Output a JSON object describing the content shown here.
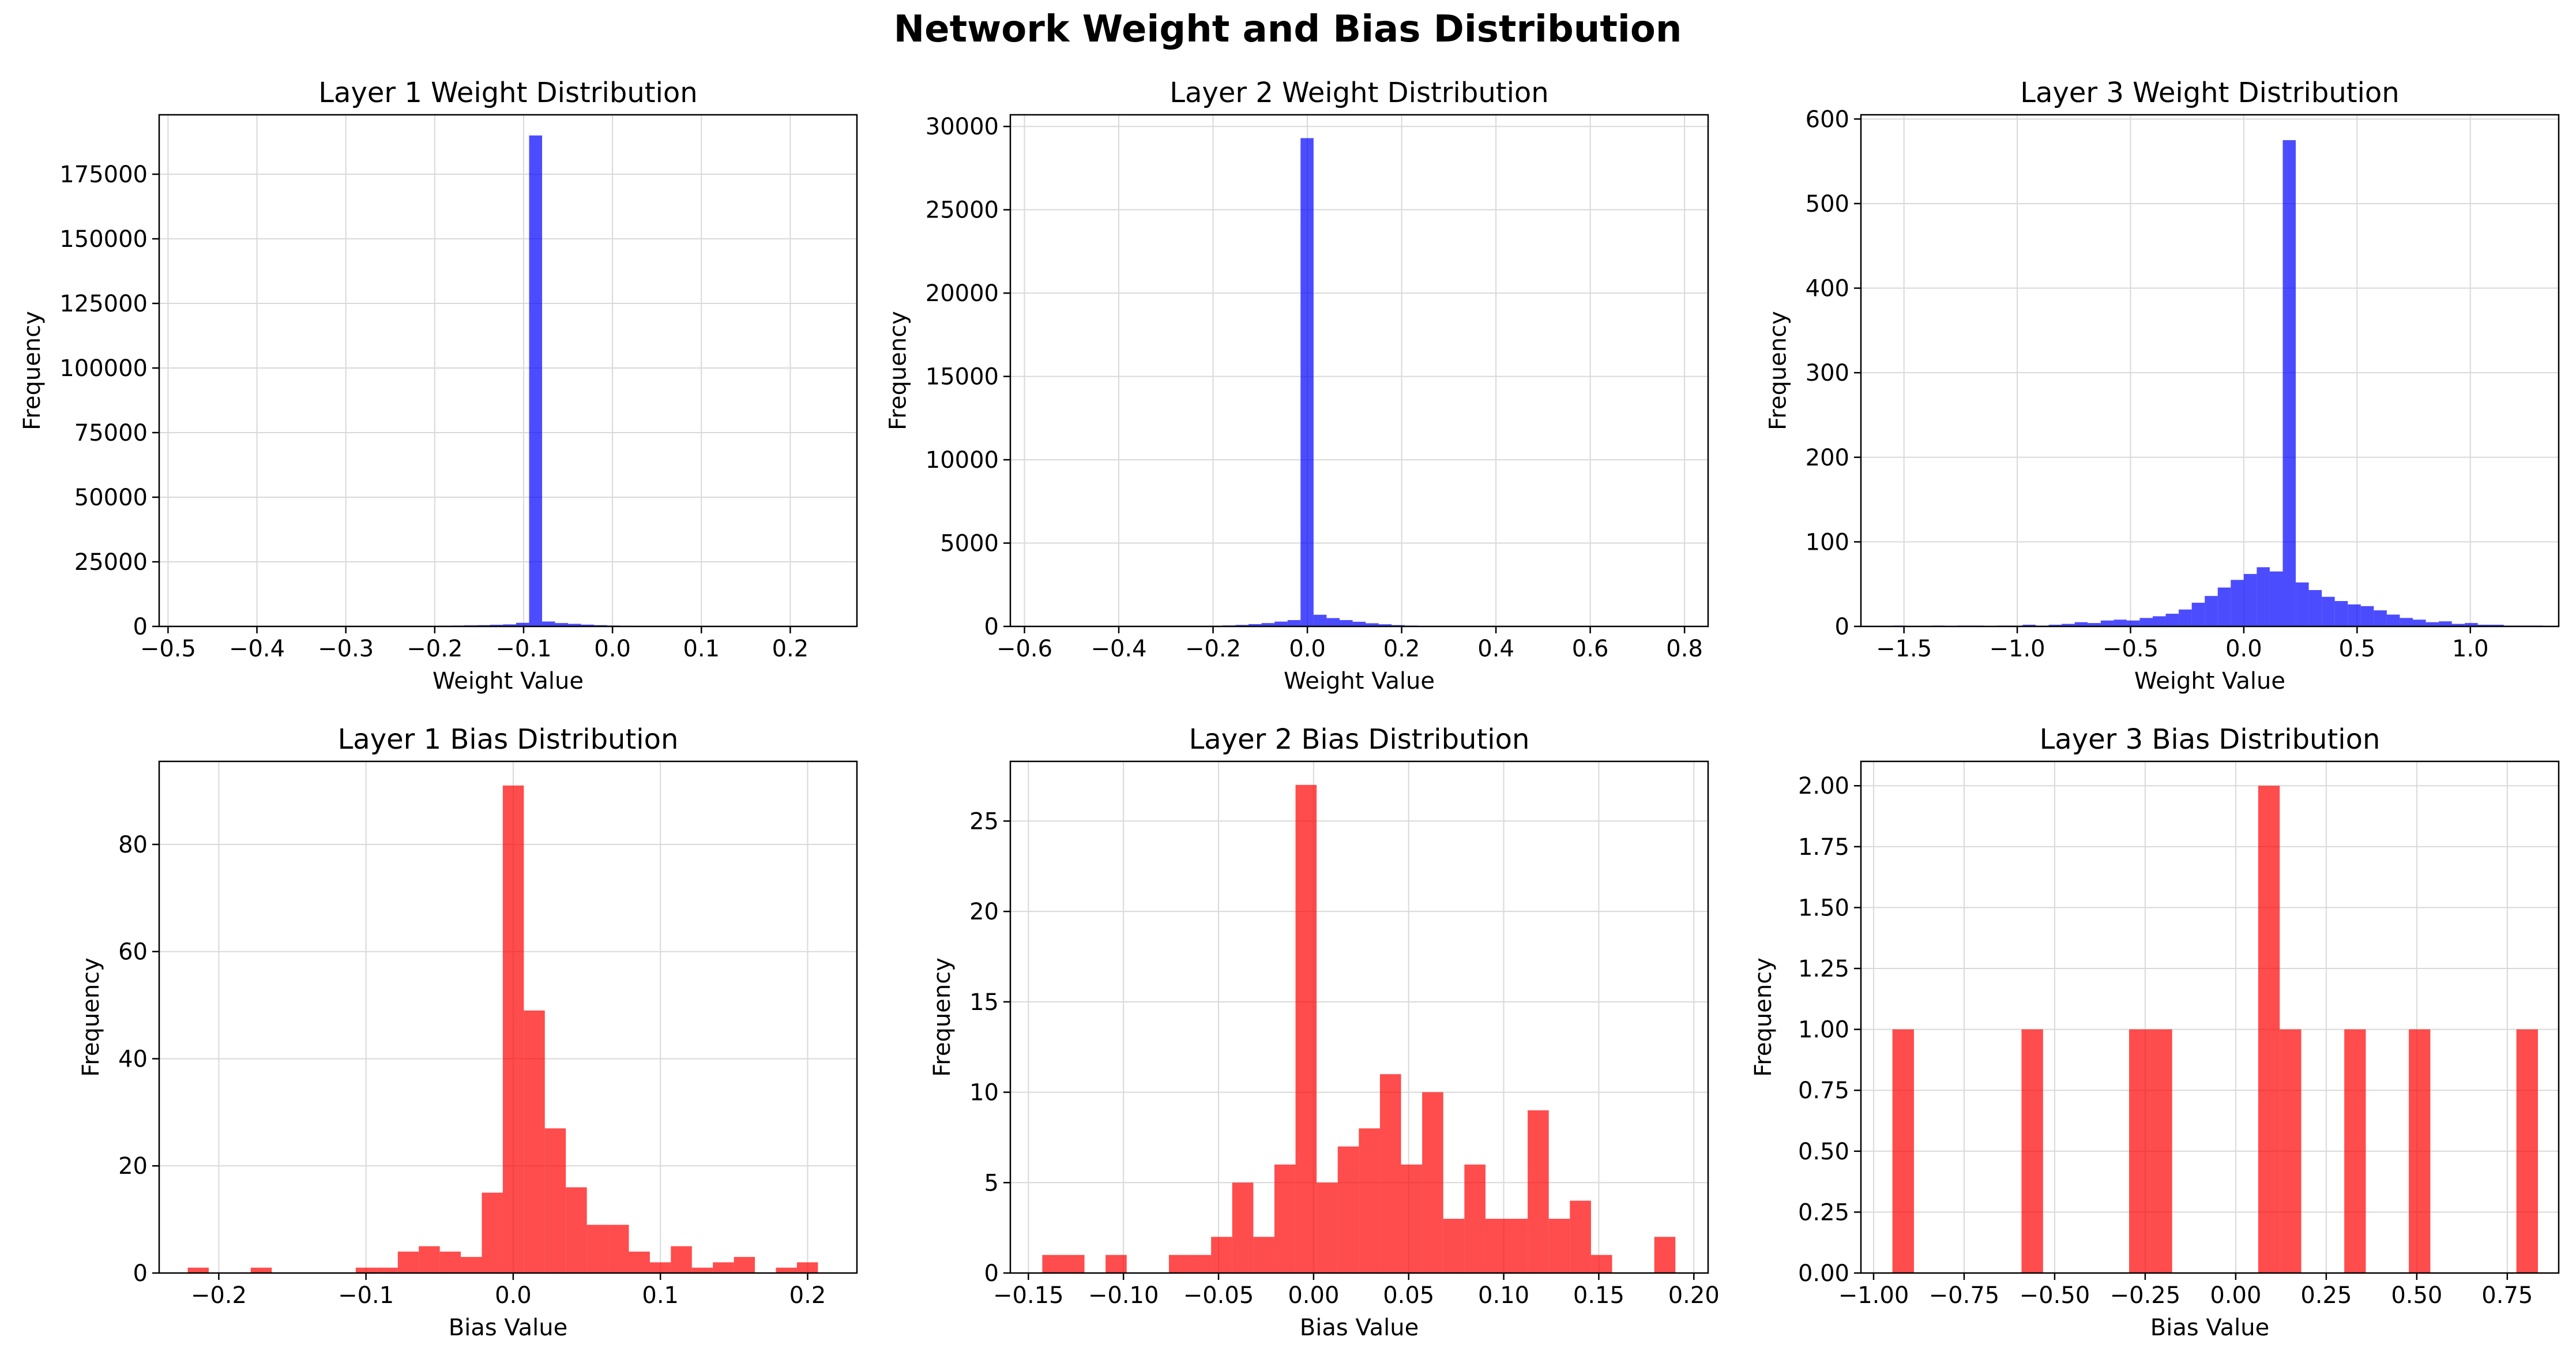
{
  "figure": {
    "title": "Network Weight and Bias Distribution"
  },
  "colors": {
    "weights": "#0000ff",
    "biases": "#ff0000",
    "grid": "#d9d9d9"
  },
  "chart_data": [
    {
      "type": "bar",
      "title": "Layer 1 Weight Distribution",
      "xlabel": "Weight Value",
      "ylabel": "Frequency",
      "xlim": [
        -0.51,
        0.275
      ],
      "ylim": [
        0,
        198000
      ],
      "xticks": [
        -0.5,
        -0.4,
        -0.3,
        -0.2,
        -0.1,
        0.0,
        0.1,
        0.2
      ],
      "xtick_labels": [
        "−0.5",
        "−0.4",
        "−0.3",
        "−0.2",
        "−0.1",
        "0.0",
        "0.1",
        "0.2"
      ],
      "yticks": [
        0,
        25000,
        50000,
        75000,
        100000,
        125000,
        150000,
        175000
      ],
      "ytick_labels": [
        "0",
        "25000",
        "50000",
        "75000",
        "100000",
        "125000",
        "150000",
        "175000"
      ],
      "grid": true,
      "color": "#0000ff",
      "bins": {
        "start": -0.4734,
        "width": 0.0146,
        "counts": [
          20,
          5,
          5,
          10,
          5,
          10,
          15,
          10,
          20,
          15,
          20,
          30,
          40,
          50,
          70,
          90,
          120,
          160,
          200,
          270,
          340,
          420,
          500,
          640,
          800,
          1400,
          190000,
          1900,
          1300,
          1000,
          700,
          500,
          350,
          250,
          180,
          130,
          90,
          60,
          40,
          30,
          20,
          10,
          10,
          5,
          5,
          5,
          5,
          5,
          5,
          5
        ]
      }
    },
    {
      "type": "bar",
      "title": "Layer 2 Weight Distribution",
      "xlabel": "Weight Value",
      "ylabel": "Frequency",
      "xlim": [
        -0.63,
        0.85
      ],
      "ylim": [
        0,
        30700
      ],
      "xticks": [
        -0.6,
        -0.4,
        -0.2,
        0.0,
        0.2,
        0.4,
        0.6,
        0.8
      ],
      "xtick_labels": [
        "−0.6",
        "−0.4",
        "−0.2",
        "0.0",
        "0.2",
        "0.4",
        "0.6",
        "0.8"
      ],
      "yticks": [
        0,
        5000,
        10000,
        15000,
        20000,
        25000,
        30000
      ],
      "ytick_labels": [
        "0",
        "5000",
        "10000",
        "15000",
        "20000",
        "25000",
        "30000"
      ],
      "grid": true,
      "color": "#0000ff",
      "bins": {
        "start": -0.5664,
        "width": 0.0276,
        "counts": [
          5,
          5,
          5,
          5,
          5,
          10,
          10,
          10,
          15,
          15,
          20,
          25,
          30,
          40,
          60,
          90,
          140,
          200,
          290,
          380,
          29300,
          700,
          500,
          380,
          280,
          190,
          130,
          80,
          50,
          30,
          20,
          15,
          10,
          10,
          5,
          5,
          5,
          5,
          5,
          5,
          5,
          5,
          5,
          5,
          5,
          5,
          5,
          5,
          5,
          5
        ]
      }
    },
    {
      "type": "bar",
      "title": "Layer 3 Weight Distribution",
      "xlabel": "Weight Value",
      "ylabel": "Frequency",
      "xlim": [
        -1.69,
        1.39
      ],
      "ylim": [
        0,
        605
      ],
      "xticks": [
        -1.5,
        -1.0,
        -0.5,
        0.0,
        0.5,
        1.0
      ],
      "xtick_labels": [
        "−1.5",
        "−1.0",
        "−0.5",
        "0.0",
        "0.5",
        "1.0"
      ],
      "yticks": [
        0,
        100,
        200,
        300,
        400,
        500,
        600
      ],
      "ytick_labels": [
        "0",
        "100",
        "200",
        "300",
        "400",
        "500",
        "600"
      ],
      "grid": true,
      "color": "#0000ff",
      "bins": {
        "start": -1.55,
        "width": 0.0574,
        "counts": [
          1,
          0,
          0,
          1,
          0,
          1,
          1,
          0,
          1,
          1,
          2,
          1,
          2,
          3,
          5,
          4,
          7,
          8,
          7,
          10,
          12,
          15,
          20,
          28,
          36,
          46,
          55,
          62,
          70,
          65,
          575,
          52,
          43,
          35,
          30,
          26,
          24,
          19,
          14,
          10,
          8,
          5,
          6,
          3,
          4,
          2,
          2,
          1,
          1,
          1
        ]
      }
    },
    {
      "type": "bar",
      "title": "Layer 1 Bias Distribution",
      "xlabel": "Bias Value",
      "ylabel": "Frequency",
      "xlim": [
        -0.2405,
        0.2335
      ],
      "ylim": [
        0,
        95.5
      ],
      "xticks": [
        -0.2,
        -0.1,
        0.0,
        0.1,
        0.2
      ],
      "xtick_labels": [
        "−0.2",
        "−0.1",
        "0.0",
        "0.1",
        "0.2"
      ],
      "yticks": [
        0,
        20,
        40,
        60,
        80
      ],
      "ytick_labels": [
        "0",
        "20",
        "40",
        "60",
        "80"
      ],
      "grid": true,
      "color": "#ff0000",
      "bins": {
        "start": -0.2211,
        "width": 0.01427,
        "counts": [
          1,
          0,
          0,
          1,
          0,
          0,
          0,
          0,
          1,
          1,
          4,
          5,
          4,
          3,
          15,
          91,
          49,
          27,
          16,
          9,
          9,
          4,
          2,
          5,
          1,
          2,
          3,
          0,
          1,
          2
        ]
      }
    },
    {
      "type": "bar",
      "title": "Layer 2 Bias Distribution",
      "xlabel": "Bias Value",
      "ylabel": "Frequency",
      "xlim": [
        -0.1595,
        0.2075
      ],
      "ylim": [
        0,
        28.3
      ],
      "xticks": [
        -0.15,
        -0.1,
        -0.05,
        0.0,
        0.05,
        0.1,
        0.15,
        0.2
      ],
      "xtick_labels": [
        "−0.15",
        "−0.10",
        "−0.05",
        "0.00",
        "0.05",
        "0.10",
        "0.15",
        "0.20"
      ],
      "yticks": [
        0,
        5,
        10,
        15,
        20,
        25
      ],
      "ytick_labels": [
        "0",
        "5",
        "10",
        "15",
        "20",
        "25"
      ],
      "grid": true,
      "color": "#ff0000",
      "bins": {
        "start": -0.1427,
        "width": 0.0111,
        "counts": [
          1,
          1,
          0,
          1,
          0,
          0,
          1,
          1,
          2,
          5,
          2,
          6,
          27,
          5,
          7,
          8,
          11,
          6,
          10,
          3,
          6,
          3,
          3,
          9,
          3,
          4,
          1,
          0,
          0,
          2
        ]
      }
    },
    {
      "type": "bar",
      "title": "Layer 3 Bias Distribution",
      "xlabel": "Bias Value",
      "ylabel": "Frequency",
      "xlim": [
        -1.035,
        0.892
      ],
      "ylim": [
        0,
        2.1
      ],
      "xticks": [
        -1.0,
        -0.75,
        -0.5,
        -0.25,
        0.0,
        0.25,
        0.5,
        0.75
      ],
      "xtick_labels": [
        "−1.00",
        "−0.75",
        "−0.50",
        "−0.25",
        "0.00",
        "0.25",
        "0.50",
        "0.75"
      ],
      "yticks": [
        0,
        0.25,
        0.5,
        0.75,
        1.0,
        1.25,
        1.5,
        1.75,
        2.0
      ],
      "ytick_labels": [
        "0.00",
        "0.25",
        "0.50",
        "0.75",
        "1.00",
        "1.25",
        "1.50",
        "1.75",
        "2.00"
      ],
      "grid": true,
      "color": "#ff0000",
      "bins": {
        "start": -0.948,
        "width": 0.05942,
        "counts": [
          1,
          0,
          0,
          0,
          0,
          0,
          1,
          0,
          0,
          0,
          0,
          1,
          1,
          0,
          0,
          0,
          0,
          2,
          1,
          0,
          0,
          1,
          0,
          0,
          1,
          0,
          0,
          0,
          0,
          1
        ]
      }
    }
  ]
}
